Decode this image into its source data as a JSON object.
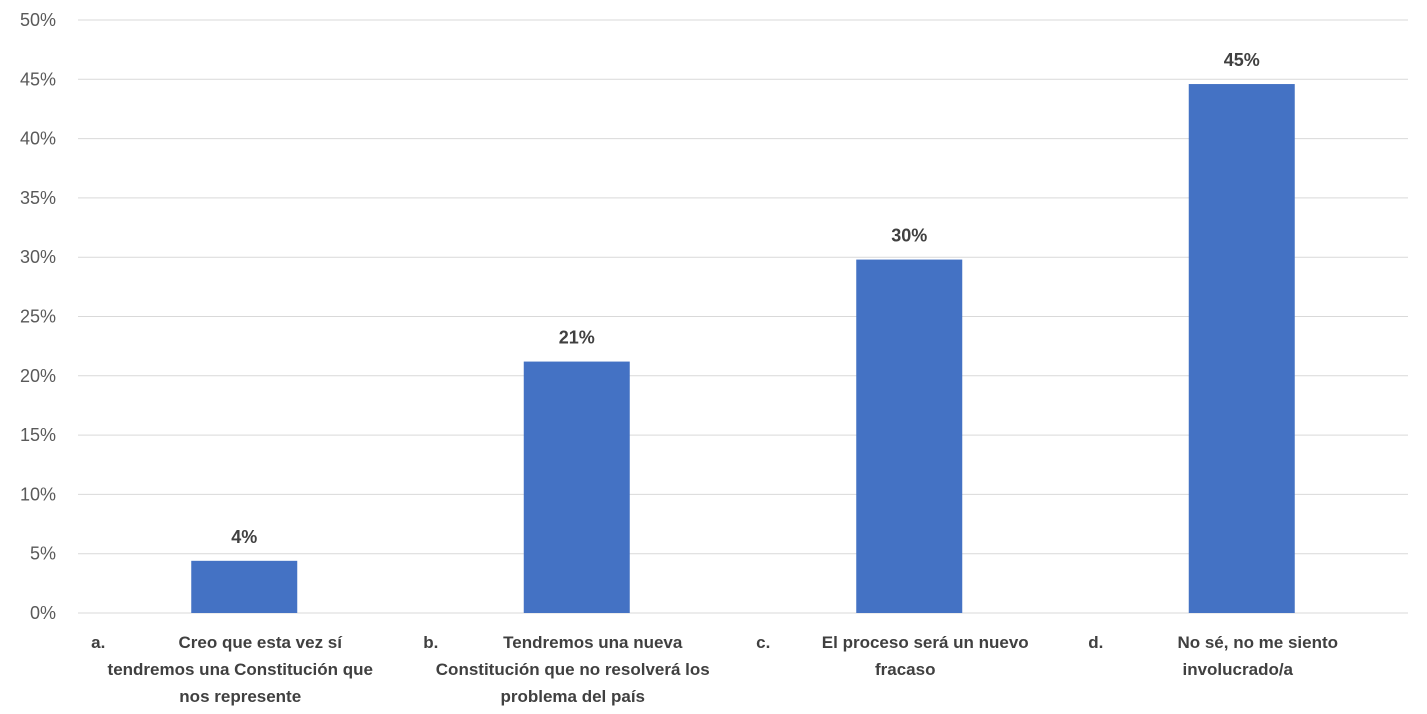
{
  "chart_data": {
    "type": "bar",
    "categories": [
      [
        "a.",
        "Creo que esta vez sí",
        "tendremos una Constitución que",
        "nos represente"
      ],
      [
        "b.",
        "Tendremos una nueva",
        "Constitución que no resolverá los",
        "problema del país"
      ],
      [
        "c.",
        "El proceso será un nuevo",
        "fracaso"
      ],
      [
        "d.",
        "No sé, no me  siento",
        "involucrado/a"
      ]
    ],
    "values": [
      4.4,
      21.2,
      29.8,
      44.6
    ],
    "data_labels": [
      "4%",
      "21%",
      "30%",
      "45%"
    ],
    "ylim": [
      0,
      50
    ],
    "yticks": [
      0,
      5,
      10,
      15,
      20,
      25,
      30,
      35,
      40,
      45,
      50
    ],
    "ytick_labels": [
      "0%",
      "5%",
      "10%",
      "15%",
      "20%",
      "25%",
      "30%",
      "35%",
      "40%",
      "45%",
      "50%"
    ],
    "grid": true,
    "bar_color": "#4472C4",
    "title": "",
    "xlabel": "",
    "ylabel": ""
  }
}
